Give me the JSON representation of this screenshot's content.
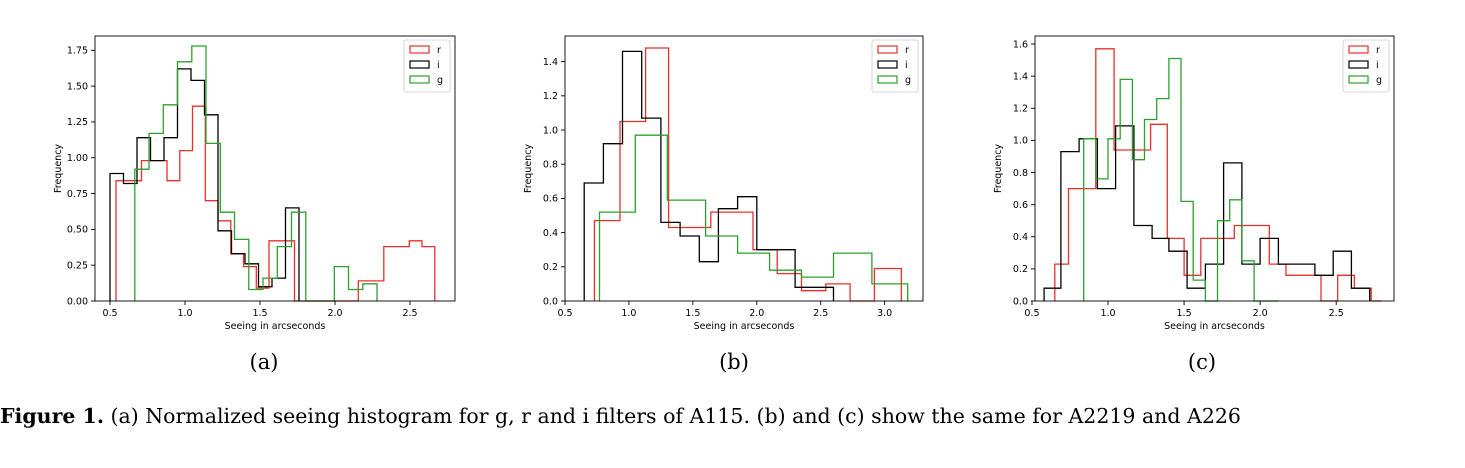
{
  "chart_data": [
    {
      "type": "histogram",
      "panel_label": "(a)",
      "xlabel": "Seeing in arcseconds",
      "ylabel": "Frequency",
      "xlim": [
        0.4,
        2.8
      ],
      "ylim": [
        0,
        1.85
      ],
      "xticks": [
        0.5,
        1.0,
        1.5,
        2.0,
        2.5
      ],
      "xtick_labels": [
        "0.5",
        "1.0",
        "1.5",
        "2.0",
        "2.5"
      ],
      "yticks": [
        0,
        0.25,
        0.5,
        0.75,
        1.0,
        1.25,
        1.5,
        1.75
      ],
      "ytick_labels": [
        "0.00",
        "0.25",
        "0.50",
        "0.75",
        "1.00",
        "1.25",
        "1.50",
        "1.75"
      ],
      "legend_location": "top-right",
      "series": [
        {
          "name": "r",
          "color": "#e8312c",
          "edges": [
            0.54,
            0.625,
            0.71,
            0.795,
            0.88,
            0.965,
            1.05,
            1.135,
            1.22,
            1.305,
            1.39,
            1.475,
            1.56,
            1.645,
            1.73,
            1.815,
            1.9,
            1.985,
            2.07,
            2.155,
            2.24,
            2.325,
            2.41,
            2.495,
            2.58,
            2.665
          ],
          "values": [
            0.84,
            0.84,
            0.98,
            0.98,
            0.84,
            1.05,
            1.36,
            0.7,
            0.56,
            0.33,
            0.24,
            0.09,
            0.42,
            0.42,
            0.0,
            0.0,
            0.0,
            0.0,
            0.0,
            0.14,
            0.14,
            0.38,
            0.38,
            0.42,
            0.38
          ]
        },
        {
          "name": "i",
          "color": "#000000",
          "edges": [
            0.5,
            0.59,
            0.68,
            0.77,
            0.86,
            0.95,
            1.04,
            1.13,
            1.22,
            1.31,
            1.4,
            1.49,
            1.58,
            1.67,
            1.76
          ],
          "values": [
            0.89,
            0.82,
            1.14,
            0.98,
            1.14,
            1.62,
            1.54,
            1.3,
            0.49,
            0.33,
            0.26,
            0.1,
            0.16,
            0.65
          ]
        },
        {
          "name": "g",
          "color": "#2ca02c",
          "edges": [
            0.665,
            0.76,
            0.855,
            0.95,
            1.045,
            1.14,
            1.235,
            1.33,
            1.425,
            1.52,
            1.615,
            1.71,
            1.805,
            1.9,
            1.995,
            2.09,
            2.185,
            2.28
          ],
          "values": [
            0.92,
            1.17,
            1.37,
            1.67,
            1.78,
            1.1,
            0.62,
            0.43,
            0.08,
            0.16,
            0.38,
            0.62,
            0.0,
            0.0,
            0.24,
            0.08,
            0.12
          ]
        }
      ]
    },
    {
      "type": "histogram",
      "panel_label": "(b)",
      "xlabel": "Seeing in arcseconds",
      "ylabel": "Frequency",
      "xlim": [
        0.5,
        3.3
      ],
      "ylim": [
        0,
        1.55
      ],
      "xticks": [
        0.5,
        1.0,
        1.5,
        2.0,
        2.5,
        3.0
      ],
      "xtick_labels": [
        "0.5",
        "1.0",
        "1.5",
        "2.0",
        "2.5",
        "3.0"
      ],
      "yticks": [
        0,
        0.2,
        0.4,
        0.6,
        0.8,
        1.0,
        1.2,
        1.4
      ],
      "ytick_labels": [
        "0.0",
        "0.2",
        "0.4",
        "0.6",
        "0.8",
        "1.0",
        "1.2",
        "1.4"
      ],
      "legend_location": "top-right",
      "series": [
        {
          "name": "r",
          "color": "#e8312c",
          "edges": [
            0.73,
            0.93,
            1.13,
            1.31,
            1.64,
            1.97,
            2.16,
            2.35,
            2.54,
            2.73,
            2.92,
            3.13
          ],
          "values": [
            0.47,
            1.05,
            1.48,
            0.43,
            0.52,
            0.3,
            0.16,
            0.06,
            0.1,
            0.0,
            0.19
          ]
        },
        {
          "name": "i",
          "color": "#000000",
          "edges": [
            0.65,
            0.8,
            0.95,
            1.1,
            1.25,
            1.4,
            1.55,
            1.7,
            1.85,
            2.0,
            2.15,
            2.3,
            2.45,
            2.6
          ],
          "values": [
            0.69,
            0.92,
            1.46,
            1.07,
            0.46,
            0.38,
            0.23,
            0.54,
            0.61,
            0.3,
            0.3,
            0.08,
            0.08
          ]
        },
        {
          "name": "g",
          "color": "#2ca02c",
          "edges": [
            0.77,
            1.05,
            1.3,
            1.6,
            1.85,
            2.1,
            2.35,
            2.6,
            2.9,
            3.18
          ],
          "values": [
            0.52,
            0.97,
            0.59,
            0.38,
            0.28,
            0.18,
            0.14,
            0.28,
            0.1
          ]
        }
      ]
    },
    {
      "type": "histogram",
      "panel_label": "(c)",
      "xlabel": "Seeing in arcseconds",
      "ylabel": "Frequency",
      "xlim": [
        0.52,
        2.88
      ],
      "ylim": [
        0,
        1.65
      ],
      "xticks": [
        0.5,
        1.0,
        1.5,
        2.0,
        2.5
      ],
      "xtick_labels": [
        "0.5",
        "1.0",
        "1.5",
        "2.0",
        "2.5"
      ],
      "yticks": [
        0,
        0.2,
        0.4,
        0.6,
        0.8,
        1.0,
        1.2,
        1.4,
        1.6
      ],
      "ytick_labels": [
        "0.0",
        "0.2",
        "0.4",
        "0.6",
        "0.8",
        "1.0",
        "1.2",
        "1.4",
        "1.6"
      ],
      "legend_location": "top-right",
      "series": [
        {
          "name": "r",
          "color": "#e8312c",
          "edges": [
            0.65,
            0.74,
            0.83,
            0.92,
            1.04,
            1.16,
            1.28,
            1.39,
            1.5,
            1.61,
            1.72,
            1.83,
            1.95,
            2.06,
            2.17,
            2.28,
            2.4,
            2.51,
            2.62,
            2.73,
            2.8
          ],
          "values": [
            0.23,
            0.7,
            0.7,
            1.57,
            0.94,
            0.94,
            1.1,
            0.39,
            0.16,
            0.39,
            0.39,
            0.47,
            0.47,
            0.23,
            0.16,
            0.16,
            0.0,
            0.16,
            0.08,
            0.0
          ]
        },
        {
          "name": "i",
          "color": "#000000",
          "edges": [
            0.58,
            0.69,
            0.81,
            0.93,
            1.05,
            1.17,
            1.29,
            1.4,
            1.52,
            1.64,
            1.76,
            1.88,
            2.0,
            2.12,
            2.24,
            2.36,
            2.48,
            2.6,
            2.72
          ],
          "values": [
            0.08,
            0.93,
            1.01,
            0.7,
            1.09,
            0.47,
            0.39,
            0.31,
            0.08,
            0.23,
            0.86,
            0.23,
            0.39,
            0.23,
            0.23,
            0.16,
            0.31,
            0.08
          ]
        },
        {
          "name": "g",
          "color": "#2ca02c",
          "edges": [
            0.84,
            0.92,
            1.0,
            1.08,
            1.16,
            1.24,
            1.32,
            1.4,
            1.48,
            1.56,
            1.64,
            1.72,
            1.8,
            1.88,
            1.96,
            2.04,
            2.12
          ],
          "values": [
            1.01,
            0.76,
            1.01,
            1.38,
            0.88,
            1.13,
            1.26,
            1.51,
            0.62,
            0.13,
            0.0,
            0.5,
            0.63,
            0.25,
            0.0,
            0.0
          ]
        }
      ]
    }
  ],
  "caption": {
    "label": "Figure 1.",
    "text": " (a) Normalized seeing histogram for g, r and i filters of A115. (b) and (c) show the same for A2219 and A226"
  }
}
